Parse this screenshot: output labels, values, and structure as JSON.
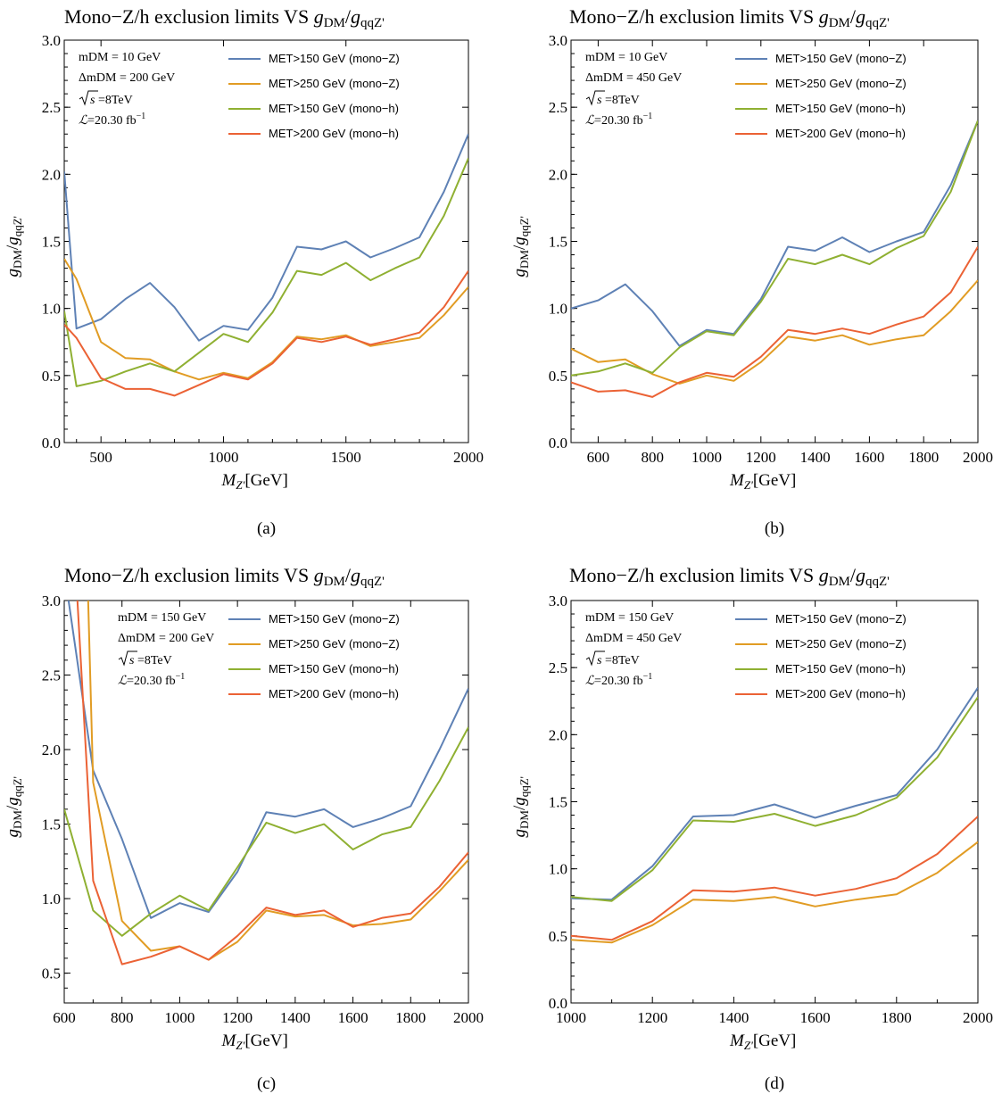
{
  "colors": {
    "mono_z_150": "#5e81b5",
    "mono_z_250": "#e19c24",
    "mono_h_150": "#8fb032",
    "mono_h_200": "#eb6235"
  },
  "chart_data": [
    {
      "type": "line",
      "panel_label": "(a)",
      "title": "Mono−Z/h exclusion limits VS ",
      "title_math": {
        "g1": "g",
        "s1": "DM",
        "slash": "/",
        "g2": "g",
        "s2": "qqZ'"
      },
      "xlabel": {
        "main": "M",
        "sub": "Z'",
        "unit": "[GeV]"
      },
      "ylabel": {
        "g1": "g",
        "s1": "DM",
        "slash": "/",
        "g2": "g",
        "s2": "qqZ'"
      },
      "xlim": [
        350,
        2000
      ],
      "ylim": [
        0,
        3
      ],
      "xticks": [
        500,
        1000,
        1500,
        2000
      ],
      "xminor": [
        400,
        600,
        700,
        800,
        900,
        1100,
        1200,
        1300,
        1400,
        1600,
        1700,
        1800,
        1900
      ],
      "yticks": [
        0,
        0.5,
        1.0,
        1.5,
        2.0,
        2.5,
        3.0
      ],
      "ytick_labels": [
        "0.0",
        "0.5",
        "1.0",
        "1.5",
        "2.0",
        "2.5",
        "3.0"
      ],
      "info": {
        "mdm": "mDM = 10 GeV",
        "dmdm": "ΔmDM = 200 GeV",
        "sqrt_s": "s",
        "energy": " =8TeV",
        "lumi_symbol": "ℒ",
        "lumi_value": "=20.30 fb",
        "lumi_exp": "−1"
      },
      "legend": [
        "MET>150 GeV (mono−Z)",
        "MET>250 GeV (mono−Z)",
        "MET>150 GeV (mono−h)",
        "MET>200 GeV (mono−h)"
      ],
      "series": [
        {
          "name": "MET>150 GeV (mono−Z)",
          "color_key": "mono_z_150",
          "x": [
            350,
            400,
            500,
            600,
            700,
            800,
            900,
            1000,
            1100,
            1200,
            1300,
            1400,
            1500,
            1600,
            1700,
            1800,
            1900,
            2000
          ],
          "y": [
            2.02,
            0.85,
            0.92,
            1.07,
            1.19,
            1.01,
            0.76,
            0.87,
            0.84,
            1.08,
            1.46,
            1.44,
            1.5,
            1.38,
            1.45,
            1.53,
            1.87,
            2.3
          ]
        },
        {
          "name": "MET>250 GeV (mono−Z)",
          "color_key": "mono_z_250",
          "x": [
            350,
            400,
            500,
            600,
            700,
            800,
            900,
            1000,
            1100,
            1200,
            1300,
            1400,
            1500,
            1600,
            1700,
            1800,
            1900,
            2000
          ],
          "y": [
            1.37,
            1.22,
            0.75,
            0.63,
            0.62,
            0.53,
            0.47,
            0.52,
            0.48,
            0.6,
            0.79,
            0.77,
            0.8,
            0.72,
            0.75,
            0.78,
            0.95,
            1.16
          ]
        },
        {
          "name": "MET>150 GeV (mono−h)",
          "color_key": "mono_h_150",
          "x": [
            350,
            400,
            500,
            600,
            700,
            800,
            900,
            1000,
            1100,
            1200,
            1300,
            1400,
            1500,
            1600,
            1700,
            1800,
            1900,
            2000
          ],
          "y": [
            0.98,
            0.42,
            0.46,
            0.53,
            0.59,
            0.53,
            0.67,
            0.81,
            0.75,
            0.97,
            1.28,
            1.25,
            1.34,
            1.21,
            1.3,
            1.38,
            1.69,
            2.12
          ]
        },
        {
          "name": "MET>200 GeV (mono−h)",
          "color_key": "mono_h_200",
          "x": [
            350,
            400,
            500,
            600,
            700,
            800,
            900,
            1000,
            1100,
            1200,
            1300,
            1400,
            1500,
            1600,
            1700,
            1800,
            1900,
            2000
          ],
          "y": [
            0.88,
            0.78,
            0.48,
            0.4,
            0.4,
            0.35,
            0.43,
            0.51,
            0.47,
            0.59,
            0.78,
            0.75,
            0.79,
            0.73,
            0.77,
            0.82,
            1.01,
            1.28
          ]
        }
      ]
    },
    {
      "type": "line",
      "panel_label": "(b)",
      "title": "Mono−Z/h exclusion limits VS ",
      "title_math": {
        "g1": "g",
        "s1": "DM",
        "slash": "/",
        "g2": "g",
        "s2": "qqZ'"
      },
      "xlabel": {
        "main": "M",
        "sub": "Z'",
        "unit": "[GeV]"
      },
      "ylabel": {
        "g1": "g",
        "s1": "DM",
        "slash": "/",
        "g2": "g",
        "s2": "qqZ'"
      },
      "xlim": [
        500,
        2000
      ],
      "ylim": [
        0,
        3
      ],
      "xticks": [
        600,
        800,
        1000,
        1200,
        1400,
        1600,
        1800,
        2000
      ],
      "xminor": [
        700,
        900,
        1100,
        1300,
        1500,
        1700,
        1900
      ],
      "yticks": [
        0,
        0.5,
        1.0,
        1.5,
        2.0,
        2.5,
        3.0
      ],
      "ytick_labels": [
        "0.0",
        "0.5",
        "1.0",
        "1.5",
        "2.0",
        "2.5",
        "3.0"
      ],
      "info": {
        "mdm": "mDM = 10 GeV",
        "dmdm": "ΔmDM = 450 GeV",
        "sqrt_s": "s",
        "energy": " =8TeV",
        "lumi_symbol": "ℒ",
        "lumi_value": "=20.30 fb",
        "lumi_exp": "−1"
      },
      "legend": [
        "MET>150 GeV (mono−Z)",
        "MET>250 GeV (mono−Z)",
        "MET>150 GeV (mono−h)",
        "MET>200 GeV (mono−h)"
      ],
      "series": [
        {
          "name": "MET>150 GeV (mono−Z)",
          "color_key": "mono_z_150",
          "x": [
            500,
            600,
            700,
            800,
            900,
            1000,
            1100,
            1200,
            1300,
            1400,
            1500,
            1600,
            1700,
            1800,
            1900,
            2000
          ],
          "y": [
            1.0,
            1.06,
            1.18,
            0.98,
            0.72,
            0.84,
            0.81,
            1.07,
            1.46,
            1.43,
            1.53,
            1.42,
            1.5,
            1.57,
            1.92,
            2.4
          ]
        },
        {
          "name": "MET>250 GeV (mono−Z)",
          "color_key": "mono_z_250",
          "x": [
            500,
            600,
            700,
            800,
            900,
            1000,
            1100,
            1200,
            1300,
            1400,
            1500,
            1600,
            1700,
            1800,
            1900,
            2000
          ],
          "y": [
            0.7,
            0.6,
            0.62,
            0.51,
            0.44,
            0.5,
            0.46,
            0.6,
            0.79,
            0.76,
            0.8,
            0.73,
            0.77,
            0.8,
            0.98,
            1.21
          ]
        },
        {
          "name": "MET>150 GeV (mono−h)",
          "color_key": "mono_h_150",
          "x": [
            500,
            600,
            700,
            800,
            900,
            1000,
            1100,
            1200,
            1300,
            1400,
            1500,
            1600,
            1700,
            1800,
            1900,
            2000
          ],
          "y": [
            0.5,
            0.53,
            0.59,
            0.52,
            0.71,
            0.83,
            0.8,
            1.05,
            1.37,
            1.33,
            1.4,
            1.33,
            1.45,
            1.54,
            1.87,
            2.4
          ]
        },
        {
          "name": "MET>200 GeV (mono−h)",
          "color_key": "mono_h_200",
          "x": [
            500,
            600,
            700,
            800,
            900,
            1000,
            1100,
            1200,
            1300,
            1400,
            1500,
            1600,
            1700,
            1800,
            1900,
            2000
          ],
          "y": [
            0.45,
            0.38,
            0.39,
            0.34,
            0.45,
            0.52,
            0.49,
            0.64,
            0.84,
            0.81,
            0.85,
            0.81,
            0.88,
            0.94,
            1.12,
            1.46
          ]
        }
      ]
    },
    {
      "type": "line",
      "panel_label": "(c)",
      "title": "Mono−Z/h exclusion limits VS ",
      "title_math": {
        "g1": "g",
        "s1": "DM",
        "slash": "/",
        "g2": "g",
        "s2": "qqZ'"
      },
      "xlabel": {
        "main": "M",
        "sub": "Z'",
        "unit": "[GeV]"
      },
      "ylabel": {
        "g1": "g",
        "s1": "DM",
        "slash": "/",
        "g2": "g",
        "s2": "qqZ'"
      },
      "xlim": [
        600,
        2000
      ],
      "ylim": [
        0.3,
        3
      ],
      "xticks": [
        600,
        800,
        1000,
        1200,
        1400,
        1600,
        1800,
        2000
      ],
      "xminor": [
        700,
        900,
        1100,
        1300,
        1500,
        1700,
        1900
      ],
      "yticks": [
        0.5,
        1.0,
        1.5,
        2.0,
        2.5,
        3.0
      ],
      "ytick_labels": [
        "0.5",
        "1.0",
        "1.5",
        "2.0",
        "2.5",
        "3.0"
      ],
      "info": {
        "mdm": "mDM = 150 GeV",
        "dmdm": "ΔmDM = 200 GeV",
        "sqrt_s": "s",
        "energy": " =8TeV",
        "lumi_symbol": "ℒ",
        "lumi_value": "=20.30 fb",
        "lumi_exp": "−1"
      },
      "legend": [
        "MET>150 GeV (mono−Z)",
        "MET>250 GeV (mono−Z)",
        "MET>150 GeV (mono−h)",
        "MET>200 GeV (mono−h)"
      ],
      "series": [
        {
          "name": "MET>150 GeV (mono−Z)",
          "color_key": "mono_z_150",
          "x": [
            600,
            700,
            800,
            900,
            1000,
            1100,
            1200,
            1300,
            1400,
            1500,
            1600,
            1700,
            1800,
            1900,
            2000
          ],
          "y": [
            3.2,
            1.86,
            1.4,
            0.87,
            0.97,
            0.91,
            1.18,
            1.58,
            1.55,
            1.6,
            1.48,
            1.54,
            1.62,
            2.0,
            2.41
          ]
        },
        {
          "name": "MET>250 GeV (mono−Z)",
          "color_key": "mono_z_250",
          "x": [
            680,
            700,
            800,
            900,
            1000,
            1100,
            1200,
            1300,
            1400,
            1500,
            1600,
            1700,
            1800,
            1900,
            2000
          ],
          "y": [
            3.2,
            1.78,
            0.85,
            0.65,
            0.68,
            0.59,
            0.71,
            0.92,
            0.88,
            0.89,
            0.82,
            0.83,
            0.86,
            1.05,
            1.26
          ]
        },
        {
          "name": "MET>150 GeV (mono−h)",
          "color_key": "mono_h_150",
          "x": [
            600,
            700,
            800,
            900,
            1000,
            1100,
            1200,
            1300,
            1400,
            1500,
            1600,
            1700,
            1800,
            1900,
            2000
          ],
          "y": [
            1.6,
            0.92,
            0.75,
            0.9,
            1.02,
            0.92,
            1.21,
            1.51,
            1.44,
            1.5,
            1.33,
            1.43,
            1.48,
            1.79,
            2.15
          ]
        },
        {
          "name": "MET>200 GeV (mono−h)",
          "color_key": "mono_h_200",
          "x": [
            640,
            700,
            800,
            900,
            1000,
            1100,
            1200,
            1300,
            1400,
            1500,
            1600,
            1700,
            1800,
            1900,
            2000
          ],
          "y": [
            3.2,
            1.12,
            0.56,
            0.61,
            0.68,
            0.59,
            0.75,
            0.94,
            0.89,
            0.92,
            0.81,
            0.87,
            0.9,
            1.08,
            1.31
          ]
        }
      ]
    },
    {
      "type": "line",
      "panel_label": "(d)",
      "title": "Mono−Z/h exclusion limits VS ",
      "title_math": {
        "g1": "g",
        "s1": "DM",
        "slash": "/",
        "g2": "g",
        "s2": "qqZ'"
      },
      "xlabel": {
        "main": "M",
        "sub": "Z'",
        "unit": "[GeV]"
      },
      "ylabel": {
        "g1": "g",
        "s1": "DM",
        "slash": "/",
        "g2": "g",
        "s2": "qqZ'"
      },
      "xlim": [
        1000,
        2000
      ],
      "ylim": [
        0,
        3
      ],
      "xticks": [
        1000,
        1200,
        1400,
        1600,
        1800,
        2000
      ],
      "xminor": [
        1100,
        1300,
        1500,
        1700,
        1900
      ],
      "yticks": [
        0,
        0.5,
        1.0,
        1.5,
        2.0,
        2.5,
        3.0
      ],
      "ytick_labels": [
        "0.0",
        "0.5",
        "1.0",
        "1.5",
        "2.0",
        "2.5",
        "3.0"
      ],
      "info": {
        "mdm": "mDM = 150 GeV",
        "dmdm": "ΔmDM = 450 GeV",
        "sqrt_s": "s",
        "energy": " =8TeV",
        "lumi_symbol": "ℒ",
        "lumi_value": "=20.30 fb",
        "lumi_exp": "−1"
      },
      "legend": [
        "MET>150 GeV (mono−Z)",
        "MET>250 GeV (mono−Z)",
        "MET>150 GeV (mono−h)",
        "MET>200 GeV (mono−h)"
      ],
      "series": [
        {
          "name": "MET>150 GeV (mono−Z)",
          "color_key": "mono_z_150",
          "x": [
            1000,
            1100,
            1200,
            1300,
            1400,
            1500,
            1600,
            1700,
            1800,
            1900,
            2000
          ],
          "y": [
            0.78,
            0.77,
            1.02,
            1.39,
            1.4,
            1.48,
            1.38,
            1.47,
            1.55,
            1.89,
            2.35
          ]
        },
        {
          "name": "MET>250 GeV (mono−Z)",
          "color_key": "mono_z_250",
          "x": [
            1000,
            1100,
            1200,
            1300,
            1400,
            1500,
            1600,
            1700,
            1800,
            1900,
            2000
          ],
          "y": [
            0.47,
            0.45,
            0.58,
            0.77,
            0.76,
            0.79,
            0.72,
            0.77,
            0.81,
            0.97,
            1.2
          ]
        },
        {
          "name": "MET>150 GeV (mono−h)",
          "color_key": "mono_h_150",
          "x": [
            1000,
            1100,
            1200,
            1300,
            1400,
            1500,
            1600,
            1700,
            1800,
            1900,
            2000
          ],
          "y": [
            0.79,
            0.76,
            0.99,
            1.36,
            1.35,
            1.41,
            1.32,
            1.4,
            1.53,
            1.83,
            2.28
          ]
        },
        {
          "name": "MET>200 GeV (mono−h)",
          "color_key": "mono_h_200",
          "x": [
            1000,
            1100,
            1200,
            1300,
            1400,
            1500,
            1600,
            1700,
            1800,
            1900,
            2000
          ],
          "y": [
            0.5,
            0.47,
            0.61,
            0.84,
            0.83,
            0.86,
            0.8,
            0.85,
            0.93,
            1.11,
            1.39
          ]
        }
      ]
    }
  ]
}
